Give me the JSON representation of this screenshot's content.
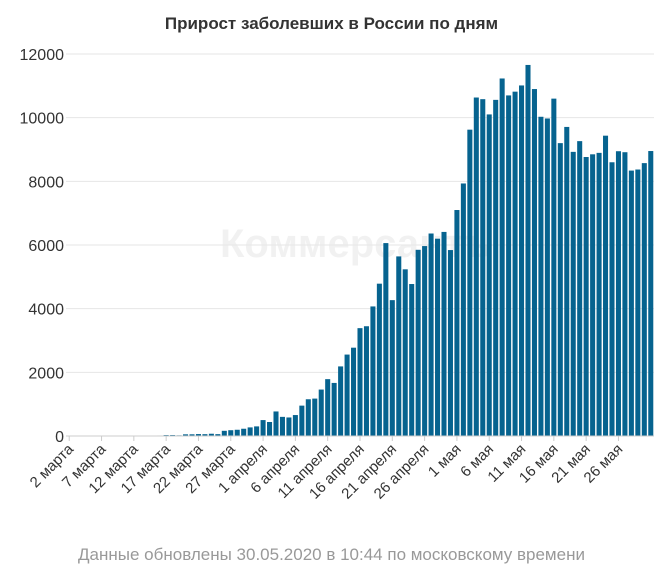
{
  "chart_data": {
    "type": "bar",
    "title": "Прирост заболевших в России по дням",
    "xlabel": "",
    "ylabel": "",
    "ylim": [
      0,
      12000
    ],
    "yticks": [
      0,
      2000,
      4000,
      6000,
      8000,
      10000,
      12000
    ],
    "grid": true,
    "bar_color": "#06638f",
    "first_day": "2 марта",
    "x_tick_labels": [
      "2 марта",
      "7 марта",
      "12 марта",
      "17 марта",
      "22 марта",
      "27 марта",
      "1 апреля",
      "6 апреля",
      "11 апреля",
      "16 апреля",
      "21 апреля",
      "26 апреля",
      "1 мая",
      "6 мая",
      "11 мая",
      "16 мая",
      "21 мая",
      "26 мая"
    ],
    "values": [
      1,
      0,
      0,
      0,
      0,
      3,
      4,
      2,
      3,
      3,
      8,
      11,
      6,
      11,
      16,
      29,
      30,
      21,
      52,
      53,
      61,
      57,
      71,
      58,
      163,
      182,
      196,
      228,
      270,
      302,
      500,
      440,
      771,
      601,
      582,
      658,
      954,
      1154,
      1175,
      1459,
      1786,
      1667,
      2186,
      2558,
      2774,
      3388,
      3448,
      4070,
      4785,
      6060,
      4268,
      5642,
      5236,
      4774,
      5849,
      5966,
      6361,
      6198,
      6411,
      5841,
      7099,
      7933,
      9623,
      10633,
      10581,
      10102,
      10559,
      11231,
      10699,
      10817,
      11012,
      11656,
      10899,
      10028,
      9974,
      10598,
      9200,
      9709,
      8926,
      9263,
      8764,
      8849,
      8894,
      9434,
      8599,
      8946,
      8915,
      8338,
      8371,
      8572,
      8952
    ]
  },
  "footer": {
    "note": "Данные обновлены 30.05.2020 в 10:44 по московскому времени"
  },
  "watermark": "Коммерсантъ"
}
